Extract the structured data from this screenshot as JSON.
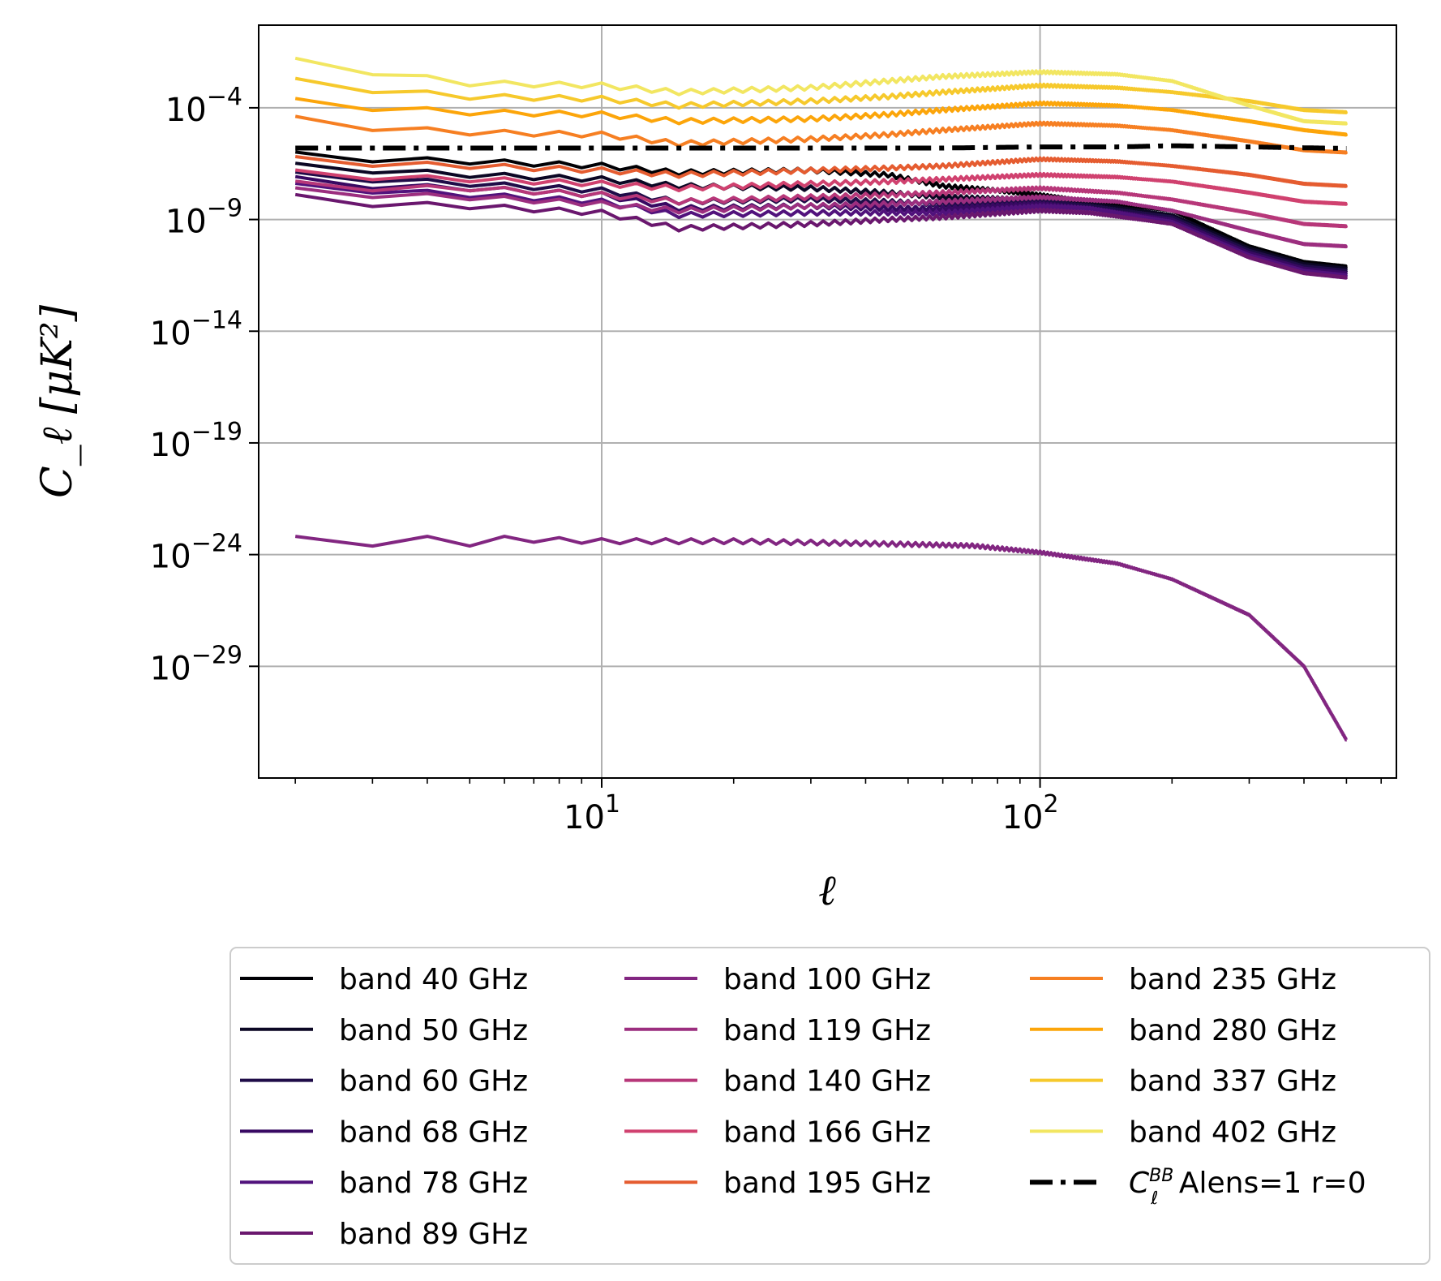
{
  "chart_data": {
    "type": "line",
    "title": "",
    "xlabel": "ℓ",
    "ylabel": "C_ℓ [μK²]",
    "xscale": "log",
    "yscale": "log",
    "xlim": [
      1.65,
      650
    ],
    "ylim_exponent": [
      -34,
      -0.3
    ],
    "grid": true,
    "x_ticks": [
      {
        "value": 10,
        "base": "10",
        "exp": "1"
      },
      {
        "value": 100,
        "base": "10",
        "exp": "2"
      }
    ],
    "y_ticks": [
      {
        "exp_value": -4,
        "base": "10",
        "exp": "−4"
      },
      {
        "exp_value": -9,
        "base": "10",
        "exp": "−9"
      },
      {
        "exp_value": -14,
        "base": "10",
        "exp": "−14"
      },
      {
        "exp_value": -19,
        "base": "10",
        "exp": "−19"
      },
      {
        "exp_value": -24,
        "base": "10",
        "exp": "−24"
      },
      {
        "exp_value": -29,
        "base": "10",
        "exp": "−29"
      }
    ],
    "series": [
      {
        "name": "band 40 GHz",
        "color": "#000004",
        "style": "solid",
        "points": [
          [
            2,
            -6.1
          ],
          [
            3,
            -6.3
          ],
          [
            5,
            -6.4
          ],
          [
            10,
            -6.6
          ],
          [
            15,
            -6.9
          ],
          [
            30,
            -6.8
          ],
          [
            45,
            -7.0
          ],
          [
            60,
            -7.5
          ],
          [
            80,
            -7.7
          ],
          [
            100,
            -7.9
          ],
          [
            130,
            -8.2
          ],
          [
            200,
            -8.6
          ],
          [
            300,
            -10.2
          ],
          [
            400,
            -10.9
          ],
          [
            500,
            -11.1
          ]
        ]
      },
      {
        "name": "band 50 GHz",
        "color": "#0b0724",
        "style": "solid",
        "points": [
          [
            2,
            -6.6
          ],
          [
            3,
            -6.8
          ],
          [
            5,
            -7.0
          ],
          [
            10,
            -7.2
          ],
          [
            15,
            -7.5
          ],
          [
            30,
            -7.6
          ],
          [
            45,
            -7.8
          ],
          [
            60,
            -8.0
          ],
          [
            100,
            -8.1
          ],
          [
            130,
            -8.3
          ],
          [
            200,
            -8.8
          ],
          [
            300,
            -10.3
          ],
          [
            400,
            -11.0
          ],
          [
            500,
            -11.2
          ]
        ]
      },
      {
        "name": "band 60 GHz",
        "color": "#1f0c48",
        "style": "solid",
        "points": [
          [
            2,
            -7.0
          ],
          [
            3,
            -7.2
          ],
          [
            5,
            -7.4
          ],
          [
            10,
            -7.7
          ],
          [
            15,
            -8.2
          ],
          [
            30,
            -8.1
          ],
          [
            45,
            -8.2
          ],
          [
            60,
            -8.3
          ],
          [
            100,
            -8.2
          ],
          [
            130,
            -8.4
          ],
          [
            200,
            -8.9
          ],
          [
            300,
            -10.4
          ],
          [
            400,
            -11.1
          ],
          [
            500,
            -11.3
          ]
        ]
      },
      {
        "name": "band 68 GHz",
        "color": "#380962",
        "style": "solid",
        "points": [
          [
            2,
            -7.2
          ],
          [
            3,
            -7.5
          ],
          [
            5,
            -7.6
          ],
          [
            10,
            -7.9
          ],
          [
            15,
            -8.5
          ],
          [
            30,
            -8.4
          ],
          [
            45,
            -8.5
          ],
          [
            60,
            -8.5
          ],
          [
            100,
            -8.3
          ],
          [
            130,
            -8.5
          ],
          [
            200,
            -9.0
          ],
          [
            300,
            -10.5
          ],
          [
            400,
            -11.2
          ],
          [
            500,
            -11.4
          ]
        ]
      },
      {
        "name": "band 78 GHz",
        "color": "#51127c",
        "style": "solid",
        "points": [
          [
            2,
            -7.5
          ],
          [
            3,
            -7.7
          ],
          [
            5,
            -7.9
          ],
          [
            10,
            -8.2
          ],
          [
            15,
            -8.8
          ],
          [
            30,
            -8.7
          ],
          [
            45,
            -8.7
          ],
          [
            60,
            -8.7
          ],
          [
            100,
            -8.4
          ],
          [
            130,
            -8.5
          ],
          [
            200,
            -9.1
          ],
          [
            300,
            -10.6
          ],
          [
            400,
            -11.3
          ],
          [
            500,
            -11.5
          ]
        ]
      },
      {
        "name": "band 89 GHz",
        "color": "#6a176e",
        "style": "solid",
        "points": [
          [
            2,
            -8.0
          ],
          [
            3,
            -8.3
          ],
          [
            5,
            -8.4
          ],
          [
            10,
            -8.7
          ],
          [
            15,
            -9.4
          ],
          [
            30,
            -9.2
          ],
          [
            45,
            -9.0
          ],
          [
            60,
            -8.9
          ],
          [
            100,
            -8.6
          ],
          [
            130,
            -8.7
          ],
          [
            200,
            -9.2
          ],
          [
            300,
            -10.7
          ],
          [
            400,
            -11.4
          ],
          [
            500,
            -11.6
          ]
        ]
      },
      {
        "name": "band 100 GHz",
        "color": "#822681",
        "style": "solid",
        "points": [
          [
            2,
            -23.3
          ],
          [
            3,
            -23.5
          ],
          [
            4,
            -23.3
          ],
          [
            5,
            -23.5
          ],
          [
            6,
            -23.3
          ],
          [
            10,
            -23.4
          ],
          [
            20,
            -23.4
          ],
          [
            40,
            -23.5
          ],
          [
            70,
            -23.6
          ],
          [
            100,
            -23.9
          ],
          [
            150,
            -24.4
          ],
          [
            200,
            -25.1
          ],
          [
            300,
            -26.7
          ],
          [
            400,
            -29.0
          ],
          [
            500,
            -32.3
          ]
        ]
      },
      {
        "name": "band 119 GHz",
        "color": "#9c2e7f",
        "style": "solid",
        "points": [
          [
            2,
            -7.7
          ],
          [
            3,
            -7.9
          ],
          [
            5,
            -8.0
          ],
          [
            10,
            -8.3
          ],
          [
            15,
            -8.6
          ],
          [
            30,
            -8.4
          ],
          [
            45,
            -8.3
          ],
          [
            60,
            -8.2
          ],
          [
            100,
            -8.0
          ],
          [
            150,
            -8.2
          ],
          [
            200,
            -8.6
          ],
          [
            300,
            -9.5
          ],
          [
            400,
            -10.1
          ],
          [
            500,
            -10.2
          ]
        ]
      },
      {
        "name": "band 140 GHz",
        "color": "#b73779",
        "style": "solid",
        "points": [
          [
            2,
            -7.4
          ],
          [
            3,
            -7.6
          ],
          [
            5,
            -7.6
          ],
          [
            10,
            -7.9
          ],
          [
            15,
            -8.2
          ],
          [
            30,
            -8.0
          ],
          [
            45,
            -7.9
          ],
          [
            60,
            -7.8
          ],
          [
            100,
            -7.6
          ],
          [
            150,
            -7.8
          ],
          [
            200,
            -8.1
          ],
          [
            300,
            -8.7
          ],
          [
            400,
            -9.2
          ],
          [
            500,
            -9.3
          ]
        ]
      },
      {
        "name": "band 166 GHz",
        "color": "#d0416f",
        "style": "solid",
        "points": [
          [
            2,
            -6.9
          ],
          [
            3,
            -7.1
          ],
          [
            5,
            -7.2
          ],
          [
            10,
            -7.4
          ],
          [
            15,
            -7.6
          ],
          [
            30,
            -7.4
          ],
          [
            45,
            -7.3
          ],
          [
            60,
            -7.2
          ],
          [
            100,
            -7.0
          ],
          [
            150,
            -7.1
          ],
          [
            200,
            -7.3
          ],
          [
            300,
            -7.8
          ],
          [
            400,
            -8.2
          ],
          [
            500,
            -8.3
          ]
        ]
      },
      {
        "name": "band 195 GHz",
        "color": "#e55c30",
        "style": "solid",
        "points": [
          [
            2,
            -6.3
          ],
          [
            3,
            -6.5
          ],
          [
            5,
            -6.6
          ],
          [
            10,
            -6.8
          ],
          [
            15,
            -7.0
          ],
          [
            30,
            -6.8
          ],
          [
            45,
            -6.7
          ],
          [
            60,
            -6.6
          ],
          [
            100,
            -6.3
          ],
          [
            150,
            -6.4
          ],
          [
            200,
            -6.6
          ],
          [
            300,
            -7.0
          ],
          [
            400,
            -7.4
          ],
          [
            500,
            -7.5
          ]
        ]
      },
      {
        "name": "band 235 GHz",
        "color": "#f67f22",
        "style": "solid",
        "points": [
          [
            2,
            -4.5
          ],
          [
            3,
            -4.9
          ],
          [
            5,
            -5.1
          ],
          [
            10,
            -5.2
          ],
          [
            15,
            -5.6
          ],
          [
            30,
            -5.4
          ],
          [
            45,
            -5.2
          ],
          [
            60,
            -5.0
          ],
          [
            100,
            -4.7
          ],
          [
            150,
            -4.8
          ],
          [
            200,
            -5.0
          ],
          [
            300,
            -5.5
          ],
          [
            400,
            -5.9
          ],
          [
            500,
            -6.0
          ]
        ]
      },
      {
        "name": "band 280 GHz",
        "color": "#fca50a",
        "style": "solid",
        "points": [
          [
            2,
            -3.7
          ],
          [
            3,
            -4.0
          ],
          [
            5,
            -4.2
          ],
          [
            10,
            -4.3
          ],
          [
            15,
            -4.6
          ],
          [
            30,
            -4.5
          ],
          [
            45,
            -4.3
          ],
          [
            60,
            -4.1
          ],
          [
            100,
            -3.8
          ],
          [
            150,
            -3.9
          ],
          [
            200,
            -4.1
          ],
          [
            300,
            -4.6
          ],
          [
            400,
            -5.0
          ],
          [
            500,
            -5.2
          ]
        ]
      },
      {
        "name": "band 337 GHz",
        "color": "#f6c92c",
        "style": "solid",
        "points": [
          [
            2,
            -2.8
          ],
          [
            3,
            -3.2
          ],
          [
            5,
            -3.5
          ],
          [
            10,
            -3.6
          ],
          [
            15,
            -3.9
          ],
          [
            30,
            -3.7
          ],
          [
            45,
            -3.5
          ],
          [
            60,
            -3.3
          ],
          [
            100,
            -3.0
          ],
          [
            150,
            -3.1
          ],
          [
            200,
            -3.3
          ],
          [
            300,
            -3.7
          ],
          [
            400,
            -4.1
          ],
          [
            500,
            -4.2
          ]
        ]
      },
      {
        "name": "band 402 GHz",
        "color": "#f2e661",
        "style": "solid",
        "points": [
          [
            2,
            -1.9
          ],
          [
            3,
            -2.4
          ],
          [
            5,
            -2.9
          ],
          [
            10,
            -3.0
          ],
          [
            15,
            -3.3
          ],
          [
            30,
            -3.1
          ],
          [
            45,
            -2.8
          ],
          [
            60,
            -2.6
          ],
          [
            100,
            -2.4
          ],
          [
            150,
            -2.5
          ],
          [
            200,
            -2.8
          ],
          [
            300,
            -3.9
          ],
          [
            400,
            -4.6
          ],
          [
            500,
            -4.7
          ]
        ]
      }
    ],
    "reference_line": {
      "name_base": "C",
      "name_sub": "ℓ",
      "name_sup": "BB",
      "name_rest": " Alens=1 r=0",
      "color": "#000000",
      "style": "dashdot",
      "points": [
        [
          2,
          -5.8
        ],
        [
          10,
          -5.8
        ],
        [
          30,
          -5.8
        ],
        [
          60,
          -5.8
        ],
        [
          100,
          -5.75
        ],
        [
          150,
          -5.75
        ],
        [
          200,
          -5.7
        ],
        [
          300,
          -5.75
        ],
        [
          500,
          -5.82
        ]
      ]
    },
    "legend_position": "below"
  }
}
